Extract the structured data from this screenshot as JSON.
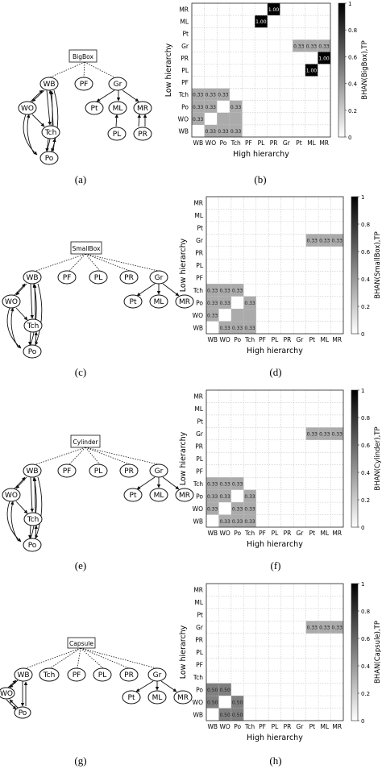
{
  "panel_labels": [
    "(a)",
    "(b)",
    "(c)",
    "(d)",
    "(e)",
    "(f)",
    "(g)",
    "(h)"
  ],
  "graphs": [
    {
      "root": "BigBox",
      "top": [
        "WB",
        "PF",
        "Gr"
      ],
      "left": [
        "WO",
        "Tch",
        "Po"
      ],
      "right": [
        "Pt",
        "ML",
        "MR"
      ],
      "right_low": [
        "PL",
        "PR"
      ]
    },
    {
      "root": "SmallBox",
      "top": [
        "WB",
        "PF",
        "PL",
        "PR",
        "Gr"
      ],
      "left": [
        "WO",
        "Tch",
        "Po"
      ],
      "right": [
        "Pt",
        "ML",
        "MR"
      ]
    },
    {
      "root": "Cylinder",
      "top": [
        "WB",
        "PF",
        "PL",
        "PR",
        "Gr"
      ],
      "left": [
        "WO",
        "Tch",
        "Po"
      ],
      "right": [
        "Pt",
        "ML",
        "MR"
      ]
    },
    {
      "root": "Capsule",
      "top": [
        "WB",
        "Tch",
        "PF",
        "PL",
        "PR",
        "Gr"
      ],
      "left": [
        "WO",
        "Po"
      ],
      "right": [
        "Pt",
        "ML",
        "MR"
      ]
    }
  ],
  "chart_data": [
    {
      "type": "heatmap",
      "title": "",
      "xlabel": "High hierarchy",
      "ylabel": "Low hierarchy",
      "colorbar_label": "BHAN(BigBox),TP",
      "x_categories": [
        "WB",
        "WO",
        "Po",
        "Tch",
        "PF",
        "PL",
        "PR",
        "Gr",
        "Pt",
        "ML",
        "MR"
      ],
      "y_categories": [
        "WB",
        "WO",
        "Po",
        "Tch",
        "PF",
        "PL",
        "PR",
        "Gr",
        "Pt",
        "ML",
        "MR"
      ],
      "colorbar_ticks": [
        0,
        0.2,
        0.4,
        0.6,
        0.8,
        1
      ],
      "grid": true,
      "cells": [
        {
          "y": "MR",
          "x": "PR",
          "value": 1.0,
          "label": "1.00"
        },
        {
          "y": "ML",
          "x": "PL",
          "value": 1.0,
          "label": "1.00"
        },
        {
          "y": "Gr",
          "x": "Pt",
          "value": 0.33,
          "label": "0.33"
        },
        {
          "y": "Gr",
          "x": "ML",
          "value": 0.33,
          "label": "0.33"
        },
        {
          "y": "Gr",
          "x": "MR",
          "value": 0.33,
          "label": "0.33"
        },
        {
          "y": "PR",
          "x": "MR",
          "value": 1.0,
          "label": "1.00"
        },
        {
          "y": "PL",
          "x": "ML",
          "value": 1.0,
          "label": "1.00"
        },
        {
          "y": "Tch",
          "x": "WB",
          "value": 0.33,
          "label": "0.33"
        },
        {
          "y": "Tch",
          "x": "WO",
          "value": 0.33,
          "label": "0.33"
        },
        {
          "y": "Tch",
          "x": "Po",
          "value": 0.33,
          "label": "0.33"
        },
        {
          "y": "Po",
          "x": "WB",
          "value": 0.33,
          "label": "0.33"
        },
        {
          "y": "Po",
          "x": "WO",
          "value": 0.33,
          "label": "0.33"
        },
        {
          "y": "Po",
          "x": "Tch",
          "value": 0.33,
          "label": "0.33"
        },
        {
          "y": "WO",
          "x": "WB",
          "value": 0.33,
          "label": "0.33"
        },
        {
          "y": "WO",
          "x": "Po",
          "value": 0.33,
          "label": ""
        },
        {
          "y": "WO",
          "x": "Tch",
          "value": 0.33,
          "label": ""
        },
        {
          "y": "WB",
          "x": "WO",
          "value": 0.33,
          "label": "0.33"
        },
        {
          "y": "WB",
          "x": "Po",
          "value": 0.33,
          "label": "0.33"
        },
        {
          "y": "WB",
          "x": "Tch",
          "value": 0.33,
          "label": "0.33"
        }
      ]
    },
    {
      "type": "heatmap",
      "title": "",
      "xlabel": "High hierarchy",
      "ylabel": "Low hierarchy",
      "colorbar_label": "BHAN(SmallBox),TP",
      "x_categories": [
        "WB",
        "WO",
        "Po",
        "Tch",
        "PF",
        "PL",
        "PR",
        "Gr",
        "Pt",
        "ML",
        "MR"
      ],
      "y_categories": [
        "WB",
        "WO",
        "Po",
        "Tch",
        "PF",
        "PL",
        "PR",
        "Gr",
        "Pt",
        "ML",
        "MR"
      ],
      "colorbar_ticks": [
        0,
        0.2,
        0.4,
        0.6,
        0.8,
        1
      ],
      "grid": true,
      "cells": [
        {
          "y": "Gr",
          "x": "Pt",
          "value": 0.33,
          "label": "0.33"
        },
        {
          "y": "Gr",
          "x": "ML",
          "value": 0.33,
          "label": "0.33"
        },
        {
          "y": "Gr",
          "x": "MR",
          "value": 0.33,
          "label": "0.33"
        },
        {
          "y": "Tch",
          "x": "WB",
          "value": 0.33,
          "label": "0.33"
        },
        {
          "y": "Tch",
          "x": "WO",
          "value": 0.33,
          "label": "0.33"
        },
        {
          "y": "Tch",
          "x": "Po",
          "value": 0.33,
          "label": "0.33"
        },
        {
          "y": "Po",
          "x": "WB",
          "value": 0.33,
          "label": "0.33"
        },
        {
          "y": "Po",
          "x": "WO",
          "value": 0.33,
          "label": "0.33"
        },
        {
          "y": "Po",
          "x": "Tch",
          "value": 0.33,
          "label": "0.33"
        },
        {
          "y": "WO",
          "x": "WB",
          "value": 0.33,
          "label": "0.33"
        },
        {
          "y": "WO",
          "x": "Po",
          "value": 0.33,
          "label": ""
        },
        {
          "y": "WO",
          "x": "Tch",
          "value": 0.33,
          "label": ""
        },
        {
          "y": "WB",
          "x": "WO",
          "value": 0.33,
          "label": "0.33"
        },
        {
          "y": "WB",
          "x": "Po",
          "value": 0.33,
          "label": "0.33"
        },
        {
          "y": "WB",
          "x": "Tch",
          "value": 0.33,
          "label": "0.33"
        }
      ]
    },
    {
      "type": "heatmap",
      "title": "",
      "xlabel": "High hierarchy",
      "ylabel": "Low hierarchy",
      "colorbar_label": "BHAN(Cylinder),TP",
      "x_categories": [
        "WB",
        "WO",
        "Po",
        "Tch",
        "PF",
        "PL",
        "PR",
        "Gr",
        "Pt",
        "ML",
        "MR"
      ],
      "y_categories": [
        "WB",
        "WO",
        "Po",
        "Tch",
        "PF",
        "PL",
        "PR",
        "Gr",
        "Pt",
        "ML",
        "MR"
      ],
      "colorbar_ticks": [
        0,
        0.2,
        0.4,
        0.6,
        0.8,
        1
      ],
      "grid": true,
      "cells": [
        {
          "y": "Gr",
          "x": "Pt",
          "value": 0.33,
          "label": "0.33"
        },
        {
          "y": "Gr",
          "x": "ML",
          "value": 0.33,
          "label": "0.33"
        },
        {
          "y": "Gr",
          "x": "MR",
          "value": 0.33,
          "label": "0.33"
        },
        {
          "y": "Tch",
          "x": "WB",
          "value": 0.33,
          "label": "0.33"
        },
        {
          "y": "Tch",
          "x": "WO",
          "value": 0.33,
          "label": "0.33"
        },
        {
          "y": "Tch",
          "x": "Po",
          "value": 0.33,
          "label": "0.33"
        },
        {
          "y": "Po",
          "x": "WB",
          "value": 0.33,
          "label": "0.33"
        },
        {
          "y": "Po",
          "x": "WO",
          "value": 0.33,
          "label": "0.33"
        },
        {
          "y": "Po",
          "x": "Tch",
          "value": 0.33,
          "label": "0.33"
        },
        {
          "y": "WO",
          "x": "WB",
          "value": 0.33,
          "label": "0.33"
        },
        {
          "y": "WO",
          "x": "Po",
          "value": 0.33,
          "label": "0.33"
        },
        {
          "y": "WO",
          "x": "Tch",
          "value": 0.33,
          "label": "0.33"
        },
        {
          "y": "WB",
          "x": "WO",
          "value": 0.33,
          "label": "0.33"
        },
        {
          "y": "WB",
          "x": "Po",
          "value": 0.33,
          "label": "0.33"
        },
        {
          "y": "WB",
          "x": "Tch",
          "value": 0.33,
          "label": "0.33"
        }
      ]
    },
    {
      "type": "heatmap",
      "title": "",
      "xlabel": "High hierarchy",
      "ylabel": "Low hierarchy",
      "colorbar_label": "BHAN(Capsule),TP",
      "x_categories": [
        "WB",
        "WO",
        "Po",
        "Tch",
        "PF",
        "PL",
        "PR",
        "Gr",
        "Pt",
        "ML",
        "MR"
      ],
      "y_categories": [
        "WB",
        "WO",
        "Po",
        "Tch",
        "PF",
        "PL",
        "PR",
        "Gr",
        "Pt",
        "ML",
        "MR"
      ],
      "colorbar_ticks": [
        0,
        0.2,
        0.4,
        0.6,
        0.8,
        1
      ],
      "grid": true,
      "cells": [
        {
          "y": "Gr",
          "x": "Pt",
          "value": 0.33,
          "label": "0.33"
        },
        {
          "y": "Gr",
          "x": "ML",
          "value": 0.33,
          "label": "0.33"
        },
        {
          "y": "Gr",
          "x": "MR",
          "value": 0.33,
          "label": "0.33"
        },
        {
          "y": "Po",
          "x": "WB",
          "value": 0.5,
          "label": "0.50"
        },
        {
          "y": "Po",
          "x": "WO",
          "value": 0.5,
          "label": "0.50"
        },
        {
          "y": "WO",
          "x": "WB",
          "value": 0.5,
          "label": "0.50"
        },
        {
          "y": "WO",
          "x": "Po",
          "value": 0.5,
          "label": "0.50"
        },
        {
          "y": "WB",
          "x": "WO",
          "value": 0.5,
          "label": "0.50"
        },
        {
          "y": "WB",
          "x": "Po",
          "value": 0.5,
          "label": "0.50"
        }
      ]
    }
  ]
}
